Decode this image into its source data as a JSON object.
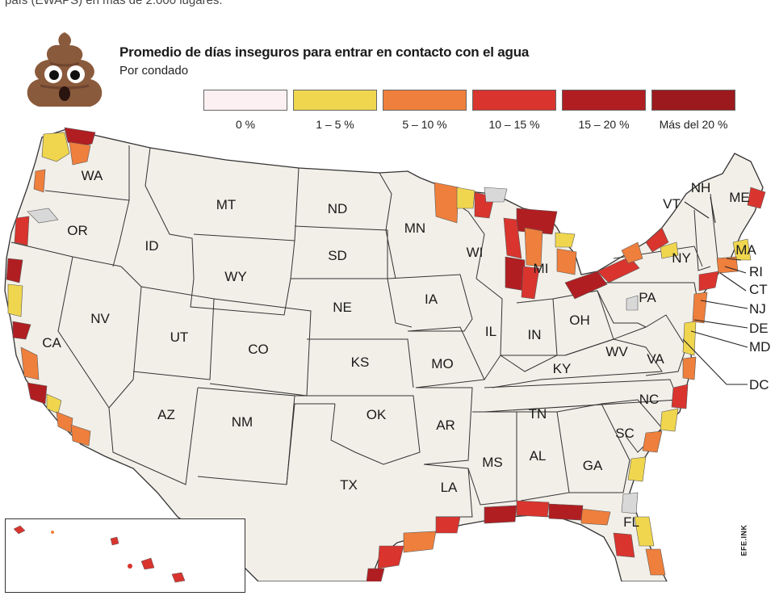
{
  "header": {
    "cut_text": "país (EWAPS) en más de 2.000 lugares.",
    "title": "Promedio de días inseguros para entrar en contacto con el agua",
    "subtitle": "Por condado"
  },
  "legend": [
    {
      "label": "0 %",
      "color": "#fdf0f2"
    },
    {
      "label": "1 – 5 %",
      "color": "#f0d64e"
    },
    {
      "label": "5 – 10 %",
      "color": "#ef7f3c"
    },
    {
      "label": "10 – 15 %",
      "color": "#d9342e"
    },
    {
      "label": "15 – 20 %",
      "color": "#b01e22"
    },
    {
      "label": "Más del 20 %",
      "color": "#9c1a1e"
    }
  ],
  "colors": {
    "land": "#f2efe8",
    "border": "#333333",
    "accent_dark": "#9c1a1e"
  },
  "states": {
    "WA": "WA",
    "OR": "OR",
    "CA": "CA",
    "ID": "ID",
    "NV": "NV",
    "MT": "MT",
    "WY": "WY",
    "UT": "UT",
    "AZ": "AZ",
    "CO": "CO",
    "NM": "NM",
    "ND": "ND",
    "SD": "SD",
    "NE": "NE",
    "KS": "KS",
    "OK": "OK",
    "TX": "TX",
    "MN": "MN",
    "IA": "IA",
    "MO": "MO",
    "AR": "AR",
    "LA": "LA",
    "WI": "WI",
    "IL": "IL",
    "MI": "MI",
    "IN": "IN",
    "OH": "OH",
    "KY": "KY",
    "TN": "TN",
    "MS": "MS",
    "AL": "AL",
    "GA": "GA",
    "FL": "FL",
    "SC": "SC",
    "NC": "NC",
    "VA": "VA",
    "WV": "WV",
    "PA": "PA",
    "NY": "NY",
    "VT": "VT",
    "NH": "NH",
    "ME": "ME",
    "MA": "MA",
    "RI": "RI",
    "CT": "CT",
    "NJ": "NJ",
    "DE": "DE",
    "MD": "MD",
    "DC": "DC"
  },
  "logo_text": "EFE.INK"
}
